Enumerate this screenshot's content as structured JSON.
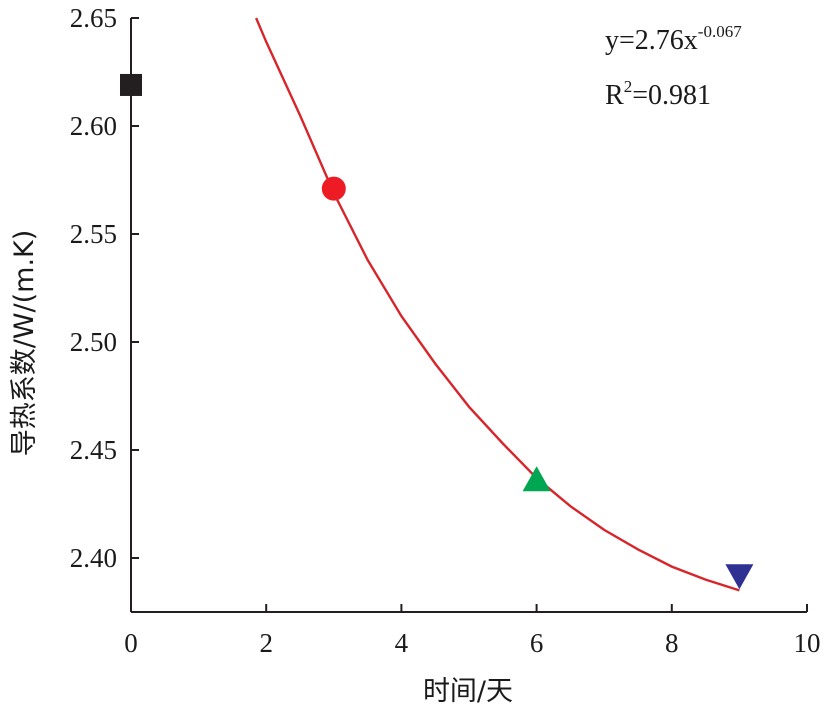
{
  "chart_data": {
    "type": "scatter",
    "xlabel": "时间/天",
    "ylabel": "导热系数/W/(m.K)",
    "xlim": [
      0,
      10
    ],
    "ylim": [
      2.375,
      2.65
    ],
    "x_ticks": [
      "0",
      "2",
      "4",
      "6",
      "8",
      "10"
    ],
    "x_tick_values": [
      0,
      2,
      4,
      6,
      8,
      10
    ],
    "y_ticks": [
      "2.65",
      "2.60",
      "2.55",
      "2.50",
      "2.45",
      "2.40"
    ],
    "y_tick_values": [
      2.65,
      2.6,
      2.55,
      2.5,
      2.45,
      2.4
    ],
    "points": [
      {
        "x": 0,
        "y": 2.619,
        "marker": "square",
        "color": "#231f20"
      },
      {
        "x": 3,
        "y": 2.571,
        "marker": "circle",
        "color": "#ed1c24"
      },
      {
        "x": 6,
        "y": 2.436,
        "marker": "triangle-up",
        "color": "#00a651"
      },
      {
        "x": 9,
        "y": 2.392,
        "marker": "triangle-down",
        "color": "#2e3192"
      }
    ],
    "fit": {
      "color": "#d7262b",
      "x_range": [
        1.85,
        9.0
      ],
      "x": [
        1.85,
        2.0,
        2.25,
        2.5,
        2.75,
        3.0,
        3.5,
        4.0,
        4.5,
        5.0,
        5.5,
        6.0,
        6.5,
        7.0,
        7.5,
        8.0,
        8.5,
        9.0
      ],
      "y": [
        2.65,
        2.639,
        2.622,
        2.605,
        2.587,
        2.569,
        2.538,
        2.512,
        2.49,
        2.47,
        2.453,
        2.437,
        2.424,
        2.413,
        2.404,
        2.396,
        2.39,
        2.385
      ]
    },
    "annotations": {
      "equation_main": "y=2.76x",
      "equation_exp": "-0.067",
      "r2_main": "R",
      "r2_sup": "2",
      "r2_value": "=0.981"
    },
    "grid": false,
    "legend": "none"
  }
}
